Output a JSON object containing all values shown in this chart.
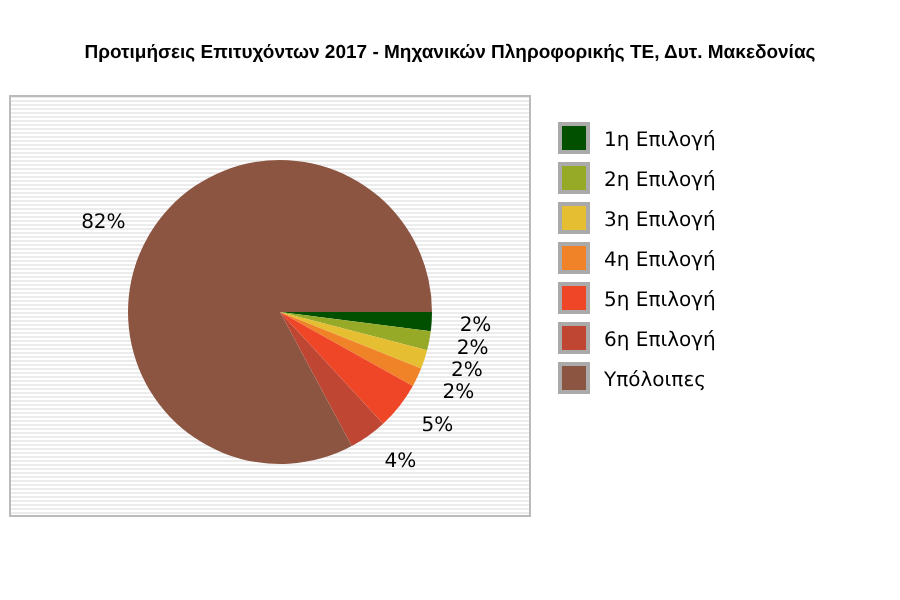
{
  "chart_data": {
    "type": "pie",
    "title": "Προτιμήσεις Επιτυχόντων 2017 - Μηχανικών Πληροφορικής ΤΕ, Δυτ. Μακεδονίας",
    "categories": [
      "1η Επιλογή",
      "2η Επιλογή",
      "3η Επιλογή",
      "4η Επιλογή",
      "5η Επιλογή",
      "6η Επιλογή",
      "Υπόλοιπες"
    ],
    "values": [
      2,
      2,
      2,
      2,
      5,
      4,
      82
    ],
    "colors": [
      "#005000",
      "#96aa28",
      "#e6be32",
      "#f08228",
      "#f04628",
      "#be4632",
      "#8c5541"
    ],
    "value_labels": [
      "2%",
      "2%",
      "2%",
      "2%",
      "5%",
      "4%",
      "82%"
    ],
    "legend": "right"
  }
}
